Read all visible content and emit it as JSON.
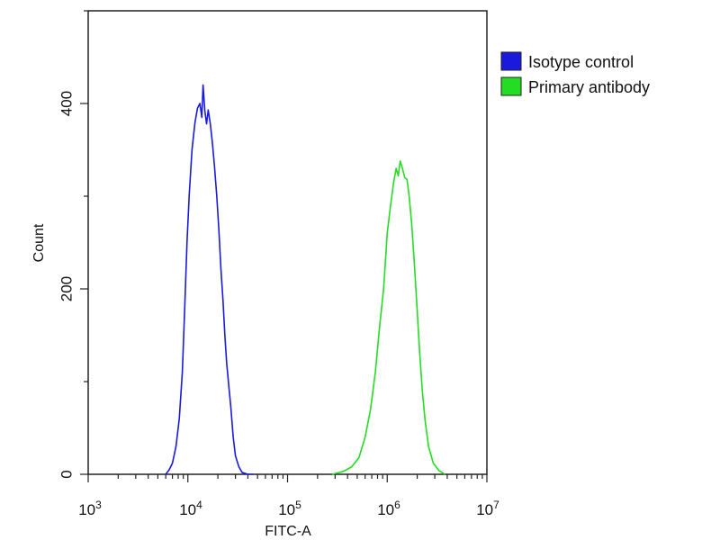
{
  "chart_data": {
    "type": "line",
    "title": "",
    "xlabel": "FITC-A",
    "ylabel": "Count",
    "xscale": "log",
    "xlim": [
      1000,
      10000000
    ],
    "ylim": [
      0,
      500
    ],
    "y_ticks": [
      0,
      200,
      400
    ],
    "x_ticks": [
      {
        "value": 1000,
        "base": "10",
        "exp": "3"
      },
      {
        "value": 10000,
        "base": "10",
        "exp": "4"
      },
      {
        "value": 100000,
        "base": "10",
        "exp": "5"
      },
      {
        "value": 1000000,
        "base": "10",
        "exp": "6"
      },
      {
        "value": 10000000,
        "base": "10",
        "exp": "7"
      }
    ],
    "grid": false,
    "legend_position": "top-right",
    "series": [
      {
        "name": "Isotype control",
        "color": "#1a1adc",
        "points": [
          [
            6000,
            0
          ],
          [
            6500,
            5
          ],
          [
            7000,
            12
          ],
          [
            7600,
            30
          ],
          [
            8200,
            60
          ],
          [
            8800,
            110
          ],
          [
            9300,
            180
          ],
          [
            9800,
            250
          ],
          [
            10300,
            300
          ],
          [
            11000,
            350
          ],
          [
            11800,
            380
          ],
          [
            12500,
            395
          ],
          [
            13200,
            400
          ],
          [
            13800,
            385
          ],
          [
            14200,
            420
          ],
          [
            14800,
            392
          ],
          [
            15400,
            378
          ],
          [
            16000,
            393
          ],
          [
            16800,
            378
          ],
          [
            17600,
            358
          ],
          [
            18500,
            332
          ],
          [
            19500,
            300
          ],
          [
            20500,
            262
          ],
          [
            21500,
            220
          ],
          [
            22500,
            188
          ],
          [
            23500,
            150
          ],
          [
            24500,
            120
          ],
          [
            25500,
            100
          ],
          [
            27000,
            72
          ],
          [
            28500,
            40
          ],
          [
            30000,
            20
          ],
          [
            32500,
            8
          ],
          [
            35000,
            2
          ],
          [
            40000,
            0
          ],
          [
            45000,
            0
          ]
        ]
      },
      {
        "name": "Primary antibody",
        "color": "#22dd22",
        "points": [
          [
            280000,
            0
          ],
          [
            360000,
            3
          ],
          [
            440000,
            8
          ],
          [
            520000,
            18
          ],
          [
            600000,
            40
          ],
          [
            680000,
            70
          ],
          [
            760000,
            110
          ],
          [
            840000,
            160
          ],
          [
            920000,
            200
          ],
          [
            1000000,
            260
          ],
          [
            1080000,
            290
          ],
          [
            1160000,
            315
          ],
          [
            1230000,
            330
          ],
          [
            1290000,
            322
          ],
          [
            1350000,
            338
          ],
          [
            1420000,
            330
          ],
          [
            1500000,
            320
          ],
          [
            1580000,
            318
          ],
          [
            1660000,
            300
          ],
          [
            1760000,
            270
          ],
          [
            1870000,
            228
          ],
          [
            1990000,
            180
          ],
          [
            2120000,
            130
          ],
          [
            2250000,
            90
          ],
          [
            2400000,
            58
          ],
          [
            2600000,
            30
          ],
          [
            2900000,
            12
          ],
          [
            3300000,
            4
          ],
          [
            3800000,
            0
          ]
        ]
      }
    ]
  }
}
